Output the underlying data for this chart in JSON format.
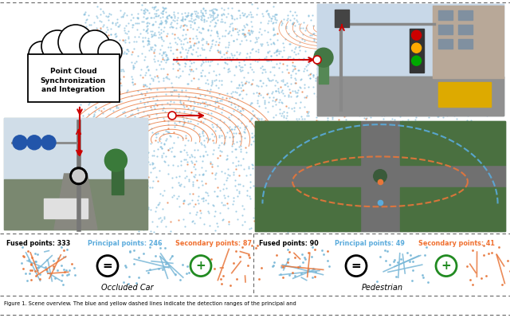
{
  "background_color": "#ffffff",
  "cloud_text": "Point Cloud\nSynchronization\nand Integration",
  "left_stats": {
    "fused": "Fused points: 333",
    "principal": "Principal points: 246",
    "secondary": "Secondary points: 87"
  },
  "right_stats": {
    "fused": "Fused points: 90",
    "principal": "Principal points: 49",
    "secondary": "Secondary points: 41"
  },
  "label_left": "Occluded Car",
  "label_right": "Pedestrian",
  "caption": "Figure 1. Scene overview. The blue and yellow dashed lines indicate the detection ranges of the principal and",
  "fused_color": "#000000",
  "principal_color": "#5aabdc",
  "secondary_color": "#f07030",
  "red_color": "#cc0000",
  "blue_pt_color": "#7ab8d8",
  "orange_pt_color": "#e8763a",
  "green_circle_color": "#228B22",
  "dashed_line_color": "#888888"
}
